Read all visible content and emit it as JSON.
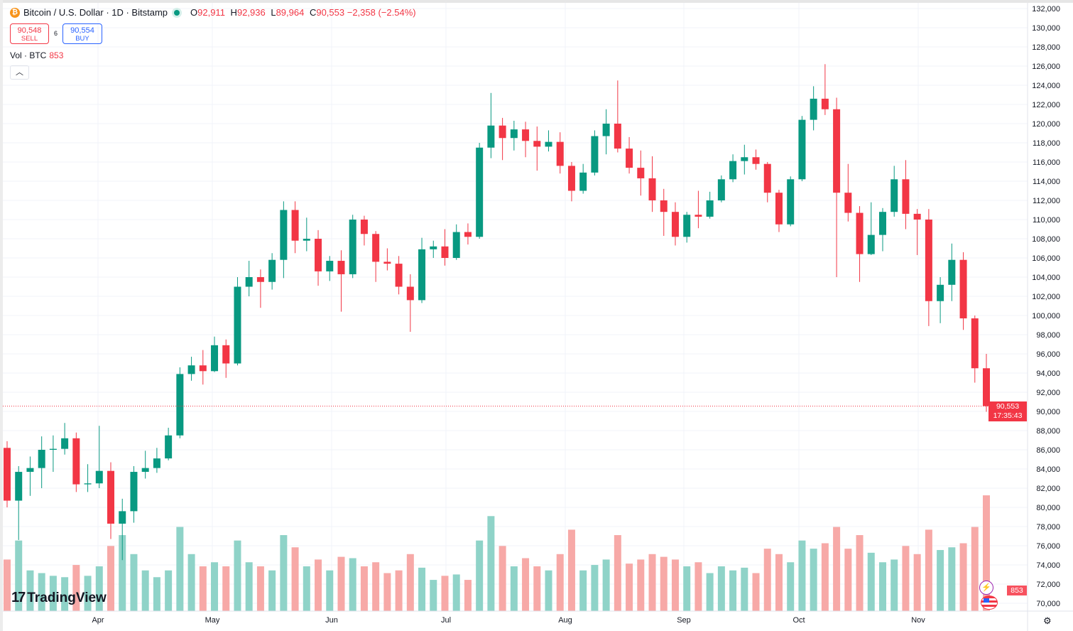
{
  "header": {
    "symbol_title": "Bitcoin / U.S. Dollar · 1D · Bitstamp",
    "symbol_icon": "bitcoin-icon",
    "market_status": "open",
    "ohlc": {
      "o_label": "O",
      "o": "92,911",
      "h_label": "H",
      "h": "92,936",
      "l_label": "L",
      "l": "89,964",
      "c_label": "C",
      "c": "90,553",
      "change": "−2,358 (−2.54%)"
    },
    "sell": {
      "price": "90,548",
      "label": "SELL"
    },
    "spread": "6",
    "buy": {
      "price": "90,554",
      "label": "BUY"
    },
    "volume": {
      "label": "Vol · BTC",
      "value": "853"
    }
  },
  "price_tag": {
    "price": "90,553",
    "countdown": "17:35:43"
  },
  "volume_tag": "853",
  "logo": "TradingView",
  "colors": {
    "up": "#089981",
    "down": "#f23645",
    "up_volume": "#8fd3c8",
    "down_volume": "#f7a9a7",
    "grid": "#f0f3fa"
  },
  "chart_data": {
    "type": "candlestick",
    "interval": "1D",
    "y_ticks": [
      "70,000",
      "72,000",
      "74,000",
      "76,000",
      "78,000",
      "80,000",
      "82,000",
      "84,000",
      "86,000",
      "88,000",
      "90,000",
      "92,000",
      "94,000",
      "96,000",
      "98,000",
      "100,000",
      "102,000",
      "104,000",
      "106,000",
      "108,000",
      "110,000",
      "112,000",
      "114,000",
      "116,000",
      "118,000",
      "120,000",
      "122,000",
      "124,000",
      "126,000",
      "128,000",
      "130,000",
      "132,000"
    ],
    "ylim": [
      70000,
      132000
    ],
    "x_ticks": [
      "Apr",
      "May",
      "Jun",
      "Jul",
      "Aug",
      "Sep",
      "Oct",
      "Nov"
    ],
    "grid": true,
    "last_price": 90553,
    "candles": [
      [
        "Mar 8",
        86200,
        86900,
        80000,
        80700,
        380
      ],
      [
        "Mar 11",
        80700,
        84300,
        76600,
        83700,
        520
      ],
      [
        "Mar 14",
        83700,
        85300,
        81200,
        84100,
        300
      ],
      [
        "Mar 17",
        84100,
        87400,
        82000,
        86000,
        280
      ],
      [
        "Mar 20",
        86000,
        87500,
        83700,
        86100,
        260
      ],
      [
        "Mar 23",
        86100,
        88800,
        85500,
        87200,
        250
      ],
      [
        "Mar 26",
        87200,
        87800,
        81600,
        82400,
        340
      ],
      [
        "Mar 29",
        82400,
        84500,
        81600,
        82500,
        260
      ],
      [
        "Apr 1",
        82500,
        88500,
        82000,
        83800,
        330
      ],
      [
        "Apr 4",
        83800,
        84700,
        76700,
        78300,
        480
      ],
      [
        "Apr 7",
        78300,
        80900,
        74500,
        79600,
        560
      ],
      [
        "Apr 10",
        79600,
        84300,
        78400,
        83700,
        420
      ],
      [
        "Apr 13",
        83700,
        85900,
        83000,
        84100,
        300
      ],
      [
        "Apr 16",
        84100,
        86200,
        83600,
        85100,
        250
      ],
      [
        "Apr 19",
        85100,
        88300,
        84900,
        87500,
        300
      ],
      [
        "Apr 22",
        87500,
        94600,
        87200,
        93900,
        620
      ],
      [
        "Apr 25",
        93900,
        95700,
        93200,
        94800,
        420
      ],
      [
        "Apr 28",
        94800,
        96400,
        92800,
        94200,
        330
      ],
      [
        "May 1",
        94200,
        97800,
        94100,
        96900,
        360
      ],
      [
        "May 4",
        96900,
        97500,
        93500,
        95000,
        330
      ],
      [
        "May 7",
        95000,
        104000,
        94800,
        103000,
        520
      ],
      [
        "May 10",
        103000,
        105700,
        102000,
        104000,
        360
      ],
      [
        "May 13",
        104000,
        104800,
        100800,
        103500,
        330
      ],
      [
        "May 16",
        103500,
        106500,
        102700,
        105800,
        300
      ],
      [
        "May 19",
        105800,
        111900,
        103900,
        111000,
        560
      ],
      [
        "May 22",
        111000,
        111900,
        106500,
        107800,
        470
      ],
      [
        "May 25",
        107800,
        110200,
        106700,
        108000,
        330
      ],
      [
        "May 28",
        108000,
        108900,
        103100,
        104600,
        380
      ],
      [
        "May 31",
        104600,
        106200,
        103600,
        105700,
        300
      ],
      [
        "Jun 3",
        105700,
        106800,
        100400,
        104300,
        400
      ],
      [
        "Jun 6",
        104300,
        110500,
        103900,
        110000,
        390
      ],
      [
        "Jun 9",
        110000,
        110400,
        107300,
        108500,
        330
      ],
      [
        "Jun 12",
        108500,
        108800,
        103500,
        105600,
        360
      ],
      [
        "Jun 15",
        105600,
        107000,
        104700,
        105400,
        280
      ],
      [
        "Jun 18",
        105400,
        106200,
        102200,
        103000,
        300
      ],
      [
        "Jun 21",
        103000,
        104300,
        98300,
        101600,
        420
      ],
      [
        "Jun 24",
        101600,
        108100,
        101300,
        106900,
        320
      ],
      [
        "Jun 27",
        106900,
        107800,
        106000,
        107200,
        230
      ],
      [
        "Jun 30",
        107200,
        109000,
        105200,
        106000,
        260
      ],
      [
        "Jul 3",
        106000,
        109500,
        105800,
        108700,
        270
      ],
      [
        "Jul 6",
        108700,
        109600,
        107400,
        108200,
        230
      ],
      [
        "Jul 9",
        108200,
        118000,
        108000,
        117500,
        520
      ],
      [
        "Jul 12",
        117500,
        123200,
        116400,
        119800,
        700
      ],
      [
        "Jul 15",
        119800,
        120600,
        116200,
        118500,
        480
      ],
      [
        "Jul 18",
        118500,
        120300,
        117200,
        119400,
        330
      ],
      [
        "Jul 21",
        119400,
        120200,
        116500,
        118200,
        390
      ],
      [
        "Jul 24",
        118200,
        119700,
        115100,
        117600,
        330
      ],
      [
        "Jul 27",
        117600,
        119300,
        117100,
        118100,
        300
      ],
      [
        "Jul 30",
        118100,
        119100,
        114800,
        115600,
        420
      ],
      [
        "Aug 2",
        115600,
        116000,
        111900,
        113000,
        600
      ],
      [
        "Aug 5",
        113000,
        115800,
        112700,
        114900,
        300
      ],
      [
        "Aug 8",
        114900,
        119300,
        114600,
        118700,
        340
      ],
      [
        "Aug 11",
        118700,
        121500,
        116800,
        120000,
        380
      ],
      [
        "Aug 14",
        120000,
        124500,
        117000,
        117400,
        560
      ],
      [
        "Aug 17",
        117400,
        118600,
        114800,
        115400,
        350
      ],
      [
        "Aug 20",
        115400,
        117200,
        112500,
        114300,
        380
      ],
      [
        "Aug 23",
        114300,
        116600,
        110800,
        112000,
        420
      ],
      [
        "Aug 26",
        112000,
        113200,
        108300,
        110800,
        400
      ],
      [
        "Aug 29",
        110800,
        111800,
        107300,
        108200,
        380
      ],
      [
        "Sep 1",
        108200,
        110800,
        107600,
        110500,
        330
      ],
      [
        "Sep 4",
        110500,
        113000,
        109100,
        110300,
        360
      ],
      [
        "Sep 7",
        110300,
        112900,
        110100,
        112000,
        280
      ],
      [
        "Sep 10",
        112000,
        114600,
        111800,
        114200,
        330
      ],
      [
        "Sep 13",
        114200,
        116800,
        113900,
        116100,
        300
      ],
      [
        "Sep 16",
        116100,
        117800,
        114700,
        116500,
        320
      ],
      [
        "Sep 19",
        116500,
        117300,
        115200,
        115800,
        280
      ],
      [
        "Sep 22",
        115800,
        116000,
        111800,
        112800,
        460
      ],
      [
        "Sep 25",
        112800,
        113100,
        108700,
        109500,
        420
      ],
      [
        "Sep 28",
        109500,
        114500,
        109300,
        114200,
        360
      ],
      [
        "Oct 1",
        114200,
        120800,
        114000,
        120400,
        520
      ],
      [
        "Oct 4",
        120400,
        123900,
        119300,
        122600,
        460
      ],
      [
        "Oct 7",
        122600,
        126200,
        120900,
        121500,
        500
      ],
      [
        "Oct 10",
        121500,
        122700,
        104000,
        112800,
        620
      ],
      [
        "Oct 13",
        112800,
        115800,
        109800,
        110700,
        460
      ],
      [
        "Oct 16",
        110700,
        111400,
        103500,
        106400,
        560
      ],
      [
        "Oct 19",
        106400,
        111800,
        106300,
        108400,
        430
      ],
      [
        "Oct 22",
        108400,
        111200,
        106700,
        110800,
        360
      ],
      [
        "Oct 25",
        110800,
        115600,
        110300,
        114200,
        380
      ],
      [
        "Oct 28",
        114200,
        116200,
        109000,
        110600,
        480
      ],
      [
        "Oct 31",
        110600,
        111100,
        106300,
        110000,
        420
      ],
      [
        "Nov 3",
        110000,
        111100,
        98900,
        101500,
        600
      ],
      [
        "Nov 6",
        101500,
        104000,
        99200,
        103200,
        450
      ],
      [
        "Nov 9",
        103200,
        107500,
        101500,
        105800,
        470
      ],
      [
        "Nov 12",
        105800,
        106600,
        98500,
        99700,
        500
      ],
      [
        "Nov 15",
        99700,
        100000,
        93000,
        94500,
        620
      ],
      [
        "Nov 18",
        94500,
        96000,
        89964,
        90553,
        853
      ]
    ]
  }
}
